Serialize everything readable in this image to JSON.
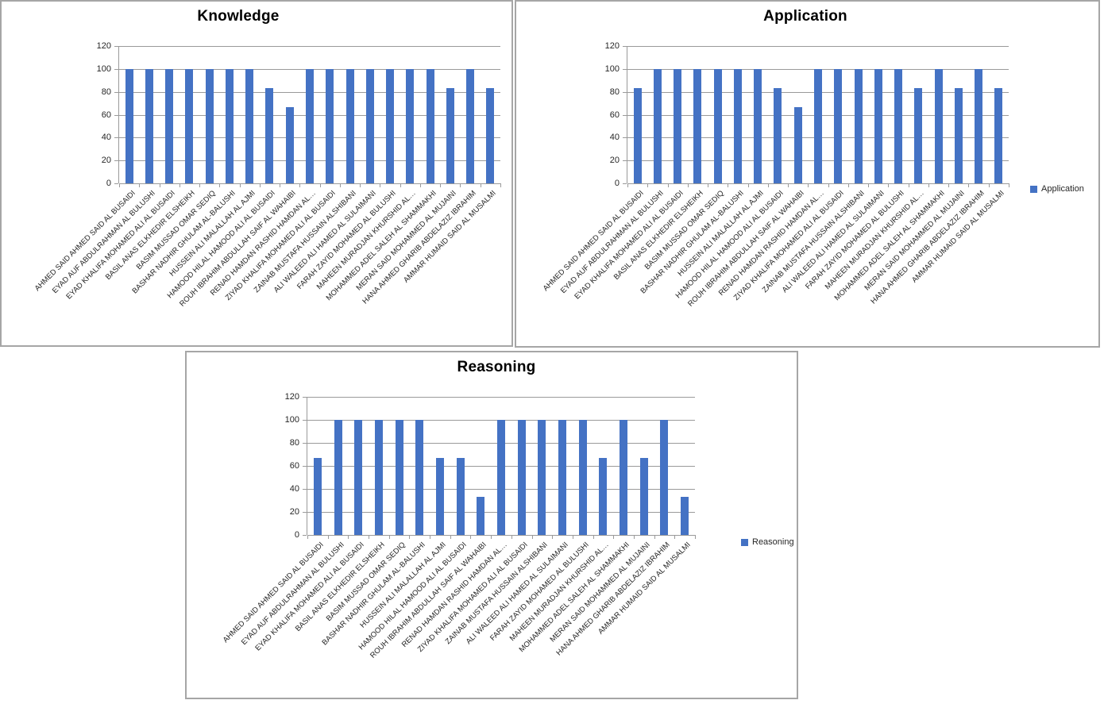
{
  "colors": {
    "bar": "#4472C4",
    "grid": "#9a9a9a",
    "panel_border": "#a6a6a6",
    "title": "#000000",
    "axis_label": "#262626"
  },
  "y_axis": {
    "min": 0,
    "max": 120,
    "step": 20,
    "ticks": [
      "0",
      "20",
      "40",
      "60",
      "80",
      "100",
      "120"
    ]
  },
  "chart_data": [
    {
      "type": "bar",
      "title": "Knowledge",
      "legend": "Knowledge",
      "legend_visible": false,
      "xlabel": "",
      "ylabel": "",
      "ylim": [
        0,
        120
      ],
      "ytick_step": 20,
      "grid": true,
      "categories": [
        "AHMED SAID AHMED  SAID AL BUSAIDI",
        "EYAD AUF ABDULRAHMAN AL BULUSHI",
        "EYAD KHALIFA MOHAMED ALI AL BUSAIDI",
        "BASIL ANAS ELKHEDIR ELSHEIKH",
        "BASIM MUSSAD OMAR SEDIQ",
        "BASHAR NADHIR GHULAM AL-BALUSHI",
        "HUSSEIN ALI MALALLAH AL AJMI",
        "HAMOOD HILAL HAMOOD ALI AL BUSAIDI",
        "ROUH IBRAHIM ABDULLAH SAIF AL WAHAIBI",
        "RENAD HAMDAN RASHID HAMDAN AL…",
        "ZIYAD KHALIFA MOHAMED ALI AL BUSAIDI",
        "ZAINAB MUSTAFA HUSSAIN ALSHIBANI",
        "ALI WALEED ALI HAMED  AL SULAIMANI",
        "FARAH ZAYID MOHAMED AL BULUSHI",
        "MAHEEN MURADJAN KHURSHID  AL…",
        "MOHAMMED ADEL SALEH AL SHAMMAKHI",
        "MERAN SAID MOHAMMED AL MUJAINI",
        "HANA AHMED GHARIB ABDELAZIZ IBRAHIM",
        "AMMAR HUMAID SAID AL MUSALMI"
      ],
      "series": [
        {
          "name": "Knowledge",
          "values": [
            100,
            100,
            100,
            100,
            100,
            100,
            100,
            83.33,
            66.67,
            100,
            100,
            100,
            100,
            100,
            100,
            100,
            83.33,
            100,
            83.33
          ]
        }
      ]
    },
    {
      "type": "bar",
      "title": "Application",
      "legend": "Application",
      "legend_visible": true,
      "legend_position": "right",
      "xlabel": "",
      "ylabel": "",
      "ylim": [
        0,
        120
      ],
      "ytick_step": 20,
      "grid": true,
      "categories": [
        "AHMED SAID AHMED  SAID AL BUSAIDI",
        "EYAD AUF ABDULRAHMAN AL BULUSHI",
        "EYAD KHALIFA MOHAMED ALI AL BUSAIDI",
        "BASIL ANAS ELKHEDIR ELSHEIKH",
        "BASIM MUSSAD OMAR SEDIQ",
        "BASHAR NADHIR GHULAM AL-BALUSHI",
        "HUSSEIN ALI MALALLAH AL AJMI",
        "HAMOOD HILAL HAMOOD ALI AL BUSAIDI",
        "ROUH IBRAHIM ABDULLAH SAIF AL WAHAIBI",
        "RENAD HAMDAN RASHID HAMDAN AL…",
        "ZIYAD KHALIFA MOHAMED ALI AL BUSAIDI",
        "ZAINAB MUSTAFA HUSSAIN ALSHIBANI",
        "ALI WALEED ALI HAMED  AL SULAIMANI",
        "FARAH ZAYID MOHAMED AL BULUSHI",
        "MAHEEN MURADJAN KHURSHID  AL…",
        "MOHAMMED ADEL SALEH AL SHAMMAKHI",
        "MERAN SAID MOHAMMED AL MUJAINI",
        "HANA AHMED GHARIB ABDELAZIZ IBRAHIM",
        "AMMAR HUMAID SAID AL MUSALMI"
      ],
      "series": [
        {
          "name": "Application",
          "values": [
            83.33,
            100,
            100,
            100,
            100,
            100,
            100,
            83.33,
            66.67,
            100,
            100,
            100,
            100,
            100,
            83.33,
            100,
            83.33,
            100,
            83.33
          ]
        }
      ]
    },
    {
      "type": "bar",
      "title": "Reasoning",
      "legend": "Reasoning",
      "legend_visible": true,
      "legend_position": "right",
      "xlabel": "",
      "ylabel": "",
      "ylim": [
        0,
        120
      ],
      "ytick_step": 20,
      "grid": true,
      "categories": [
        "AHMED SAID AHMED  SAID AL BUSAIDI",
        "EYAD AUF ABDULRAHMAN AL BULUSHI",
        "EYAD KHALIFA MOHAMED ALI AL BUSAIDI",
        "BASIL ANAS ELKHEDIR ELSHEIKH",
        "BASIM MUSSAD OMAR SEDIQ",
        "BASHAR NADHIR GHULAM AL-BALUSHI",
        "HUSSEIN ALI MALALLAH AL AJMI",
        "HAMOOD HILAL HAMOOD ALI AL BUSAIDI",
        "ROUH IBRAHIM ABDULLAH SAIF AL WAHAIBI",
        "RENAD HAMDAN RASHID HAMDAN AL…",
        "ZIYAD KHALIFA MOHAMED ALI AL BUSAIDI",
        "ZAINAB MUSTAFA HUSSAIN ALSHIBANI",
        "ALI WALEED ALI HAMED  AL SULAIMANI",
        "FARAH ZAYID MOHAMED AL BULUSHI",
        "MAHEEN MURADJAN KHURSHID  AL…",
        "MOHAMMED ADEL SALEH AL SHAMMAKHI",
        "MERAN SAID MOHAMMED AL MUJAINI",
        "HANA AHMED GHARIB ABDELAZIZ IBRAHIM",
        "AMMAR HUMAID SAID AL MUSALMI"
      ],
      "series": [
        {
          "name": "Reasoning",
          "values": [
            66.67,
            100,
            100,
            100,
            100,
            100,
            66.67,
            66.67,
            33.33,
            100,
            100,
            100,
            100,
            100,
            66.67,
            100,
            66.67,
            100,
            33.33
          ]
        }
      ]
    }
  ]
}
